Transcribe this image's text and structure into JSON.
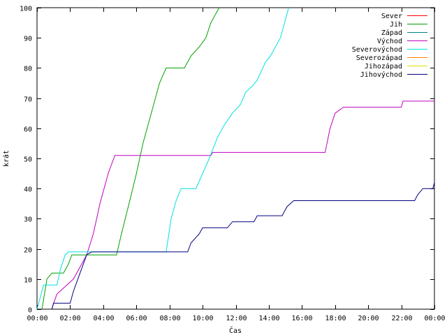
{
  "chart_data": {
    "type": "line",
    "xlabel": "Čas",
    "ylabel": "krát",
    "xlim": [
      0,
      24
    ],
    "ylim": [
      0,
      100
    ],
    "x_ticks": [
      "00:00",
      "02:00",
      "04:00",
      "06:00",
      "08:00",
      "10:00",
      "12:00",
      "14:00",
      "16:00",
      "18:00",
      "20:00",
      "22:00",
      "00:00"
    ],
    "y_ticks": [
      "0",
      "10",
      "20",
      "30",
      "40",
      "50",
      "60",
      "70",
      "80",
      "90",
      "100"
    ],
    "grid": false,
    "legend_position": "top-right",
    "series": [
      {
        "name": "Sever",
        "color": "#ff0000",
        "points": []
      },
      {
        "name": "Jih",
        "color": "#00a000",
        "points": [
          [
            0.3,
            0
          ],
          [
            0.6,
            10
          ],
          [
            0.9,
            12
          ],
          [
            1.6,
            12
          ],
          [
            1.9,
            15
          ],
          [
            2.1,
            18
          ],
          [
            4.8,
            18
          ],
          [
            5.1,
            25
          ],
          [
            5.6,
            36
          ],
          [
            6.0,
            45
          ],
          [
            6.4,
            55
          ],
          [
            6.9,
            65
          ],
          [
            7.4,
            75
          ],
          [
            7.8,
            80
          ],
          [
            8.9,
            80
          ],
          [
            9.3,
            84
          ],
          [
            9.8,
            87
          ],
          [
            10.2,
            90
          ],
          [
            10.5,
            95
          ],
          [
            10.7,
            97
          ],
          [
            11.0,
            100
          ]
        ]
      },
      {
        "name": "Západ",
        "color": "#008080",
        "points": []
      },
      {
        "name": "Východ",
        "color": "#c000c0",
        "points": [
          [
            0.9,
            0
          ],
          [
            1.0,
            2
          ],
          [
            1.2,
            5
          ],
          [
            1.6,
            7
          ],
          [
            2.2,
            10
          ],
          [
            2.6,
            14
          ],
          [
            3.0,
            18
          ],
          [
            3.4,
            25
          ],
          [
            3.8,
            35
          ],
          [
            4.3,
            45
          ],
          [
            4.7,
            51
          ],
          [
            10.5,
            51
          ],
          [
            10.6,
            52
          ],
          [
            17.4,
            52
          ],
          [
            17.7,
            60
          ],
          [
            18.0,
            65
          ],
          [
            18.5,
            67
          ],
          [
            22.0,
            67
          ],
          [
            22.1,
            69
          ],
          [
            24.0,
            69
          ]
        ]
      },
      {
        "name": "Severovýchod",
        "color": "#00e0e0",
        "points": [
          [
            0.0,
            0
          ],
          [
            0.4,
            8
          ],
          [
            1.2,
            8
          ],
          [
            1.4,
            13
          ],
          [
            1.7,
            18
          ],
          [
            1.9,
            19
          ],
          [
            7.8,
            19
          ],
          [
            8.1,
            30
          ],
          [
            8.4,
            36
          ],
          [
            8.7,
            40
          ],
          [
            9.6,
            40
          ],
          [
            10.0,
            45
          ],
          [
            10.4,
            50
          ],
          [
            10.9,
            57
          ],
          [
            11.3,
            61
          ],
          [
            11.8,
            65
          ],
          [
            12.3,
            68
          ],
          [
            12.6,
            72
          ],
          [
            13.0,
            74
          ],
          [
            13.3,
            76
          ],
          [
            13.8,
            82
          ],
          [
            14.1,
            84
          ],
          [
            14.7,
            90
          ],
          [
            15.0,
            96
          ],
          [
            15.2,
            100
          ]
        ]
      },
      {
        "name": "Severozápad",
        "color": "#ff8000",
        "points": []
      },
      {
        "name": "Jihozápad",
        "color": "#e0e000",
        "points": []
      },
      {
        "name": "Jihovýchod",
        "color": "#000080",
        "points": [
          [
            0.9,
            0
          ],
          [
            1.0,
            2
          ],
          [
            2.0,
            2
          ],
          [
            2.2,
            6
          ],
          [
            2.6,
            12
          ],
          [
            3.0,
            18
          ],
          [
            3.3,
            19
          ],
          [
            9.1,
            19
          ],
          [
            9.3,
            22
          ],
          [
            9.8,
            25
          ],
          [
            10.0,
            27
          ],
          [
            11.5,
            27
          ],
          [
            11.8,
            29
          ],
          [
            13.1,
            29
          ],
          [
            13.3,
            31
          ],
          [
            14.8,
            31
          ],
          [
            15.0,
            33
          ],
          [
            15.1,
            34
          ],
          [
            15.5,
            36
          ],
          [
            22.8,
            36
          ],
          [
            23.0,
            38
          ],
          [
            23.3,
            40
          ],
          [
            23.9,
            40
          ],
          [
            24.0,
            42
          ]
        ]
      }
    ]
  }
}
